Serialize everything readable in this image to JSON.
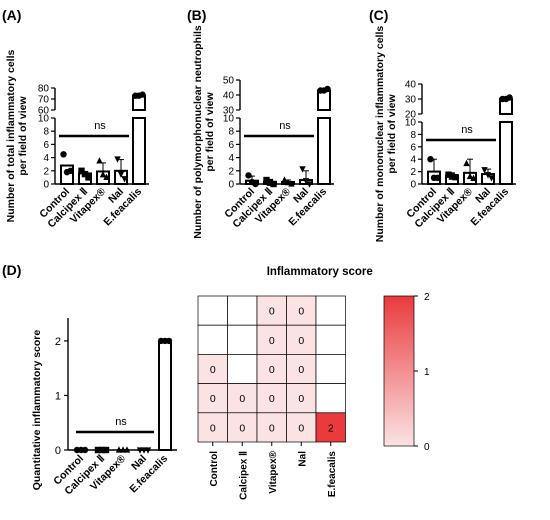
{
  "panel_labels": [
    "(A)",
    "(B)",
    "(C)",
    "(D)"
  ],
  "heatmap_title": "Inflammatory score",
  "ns_label": "ns",
  "chart_data": [
    {
      "type": "bar",
      "panel": "(A)",
      "ylabel": "Number of total inflammatory cells per field of view",
      "categories": [
        "Control",
        "Calcipex Ⅱ",
        "Vitapex®",
        "Nal",
        "E.feacalis"
      ],
      "values": [
        2.8,
        1.6,
        1.9,
        2.0,
        73
      ],
      "error_plus": [
        0.0,
        0.2,
        1.3,
        1.7,
        0.5
      ],
      "markers": [
        "circle",
        "square",
        "triangle",
        "triangle-down",
        "circle"
      ],
      "points": [
        [
          4.5,
          1.8,
          2.0
        ],
        [
          2.0,
          1.5,
          1.0
        ],
        [
          3.5,
          1.4,
          1.0
        ],
        [
          3.8,
          1.5,
          0.8
        ],
        [
          73,
          73,
          74
        ]
      ],
      "axis_broken": true,
      "yticks_lower": [
        0,
        2,
        4,
        6,
        8,
        10
      ],
      "yticks_upper": [
        60,
        70,
        80
      ],
      "ylim_lower": [
        0,
        10
      ],
      "ylim_upper": [
        60,
        80
      ],
      "annotation": "ns"
    },
    {
      "type": "bar",
      "panel": "(B)",
      "ylabel": "Number of polymorphonuclear neutrophils per field of view",
      "categories": [
        "Control",
        "Calcipex Ⅱ",
        "Vitapex®",
        "Nal",
        "E.feacalis"
      ],
      "values": [
        0.5,
        0.3,
        0.3,
        0.6,
        43
      ],
      "error_plus": [
        0.7,
        0.4,
        0.3,
        1.4,
        0.5
      ],
      "markers": [
        "circle",
        "square",
        "triangle",
        "triangle-down",
        "circle"
      ],
      "points": [
        [
          1.3,
          0.3,
          0.0
        ],
        [
          0.6,
          0.2,
          0.0
        ],
        [
          0.6,
          0.2,
          0.0
        ],
        [
          2.3,
          0.5,
          0.0
        ],
        [
          43,
          43,
          44
        ]
      ],
      "axis_broken": true,
      "yticks_lower": [
        0,
        2,
        4,
        6,
        8,
        10
      ],
      "yticks_upper": [
        30,
        40,
        50
      ],
      "ylim_lower": [
        0,
        10
      ],
      "ylim_upper": [
        30,
        50
      ],
      "annotation": "ns"
    },
    {
      "type": "bar",
      "panel": "(C)",
      "ylabel": "Number of mononuclear inflammatory cells per field of view",
      "categories": [
        "Control",
        "Calcipex Ⅱ",
        "Vitapex®",
        "Nal",
        "E.feacalis"
      ],
      "values": [
        2.0,
        1.3,
        1.8,
        1.6,
        30
      ],
      "error_plus": [
        2.0,
        0.5,
        2.2,
        0.8,
        0.5
      ],
      "markers": [
        "circle",
        "square",
        "triangle",
        "triangle-down",
        "circle"
      ],
      "points": [
        [
          4.0,
          1.0,
          1.0
        ],
        [
          1.5,
          1.2,
          1.1
        ],
        [
          3.3,
          1.2,
          0.9
        ],
        [
          2.3,
          1.5,
          1.0
        ],
        [
          30,
          30,
          31
        ]
      ],
      "axis_broken": true,
      "yticks_lower": [
        0,
        2,
        4,
        6,
        8,
        10
      ],
      "yticks_upper": [
        20,
        30,
        40
      ],
      "ylim_lower": [
        0,
        10
      ],
      "ylim_upper": [
        20,
        40
      ],
      "annotation": "ns"
    },
    {
      "type": "bar",
      "panel": "(D)",
      "ylabel": "Quantitative inflammatory score",
      "categories": [
        "Control",
        "Calcipex Ⅱ",
        "Vitapex®",
        "Nal",
        "E.feacalis"
      ],
      "values": [
        0,
        0,
        0,
        0,
        2
      ],
      "markers": [
        "circle",
        "square",
        "triangle",
        "triangle-down",
        "circle"
      ],
      "points": [
        [
          0,
          0,
          0
        ],
        [
          0,
          0,
          0
        ],
        [
          0,
          0,
          0
        ],
        [
          0,
          0,
          0
        ],
        [
          2,
          2,
          2
        ]
      ],
      "yticks": [
        0,
        1,
        2
      ],
      "ylim": [
        0,
        2.2
      ],
      "annotation": "ns"
    },
    {
      "type": "heatmap",
      "panel": "(D)",
      "title": "Inflammatory score",
      "columns": [
        "Control",
        "Calcipex Ⅱ",
        "Vitapex®",
        "Nal",
        "E.feacalis"
      ],
      "cells": [
        [
          null,
          null,
          0,
          0,
          null
        ],
        [
          null,
          null,
          0,
          0,
          null
        ],
        [
          0,
          null,
          0,
          0,
          null
        ],
        [
          0,
          0,
          0,
          0,
          null
        ],
        [
          0,
          0,
          0,
          0,
          2
        ]
      ],
      "colorbar_ticks": [
        0,
        1,
        2
      ],
      "colormap": {
        "low": "#fbe3e4",
        "high": "#ea3a3d"
      }
    }
  ]
}
